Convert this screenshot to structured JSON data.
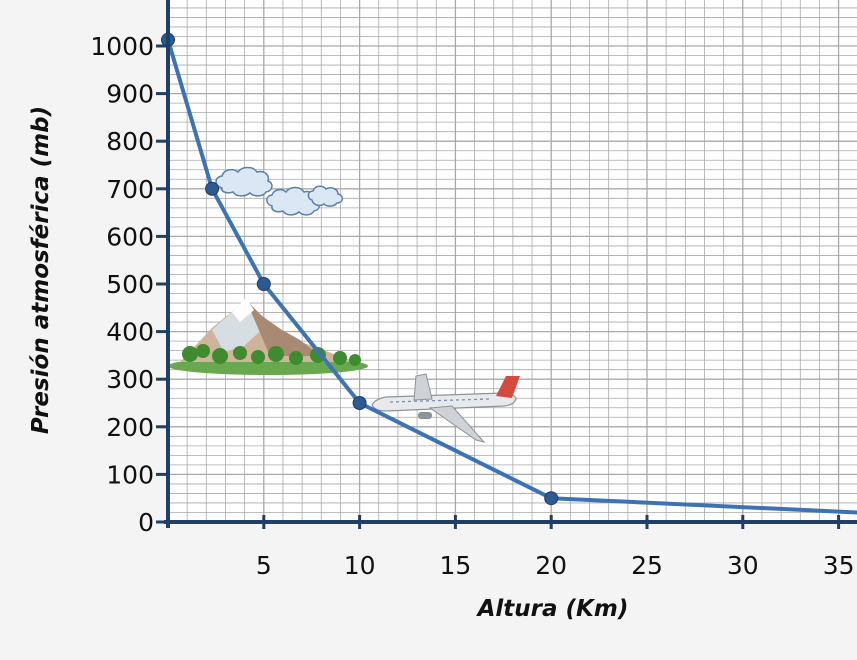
{
  "chart_data": {
    "type": "line",
    "title": "",
    "xlabel": "Altura (Km)",
    "ylabel": "Presión atmosférica (mb)",
    "xlim": [
      0,
      36
    ],
    "ylim": [
      0,
      1050
    ],
    "x_ticks": [
      5,
      10,
      15,
      20,
      25,
      30,
      35
    ],
    "y_ticks": [
      0,
      100,
      200,
      300,
      400,
      500,
      600,
      700,
      800,
      900,
      1000
    ],
    "grid": true,
    "series": [
      {
        "x": [
          0,
          2.3,
          5,
          10,
          20,
          36
        ],
        "y": [
          1013,
          700,
          500,
          250,
          50,
          20
        ],
        "markers": [
          true,
          true,
          true,
          true,
          true,
          false
        ]
      }
    ],
    "illustrations": [
      "cloud-icon",
      "mountain-icon",
      "airplane-icon"
    ],
    "colors": {
      "line": "#3d72b4",
      "marker": "#2e5a93",
      "axis": "#1f3f66",
      "grid": "#a9a9a9",
      "background": "#ffffff"
    }
  }
}
